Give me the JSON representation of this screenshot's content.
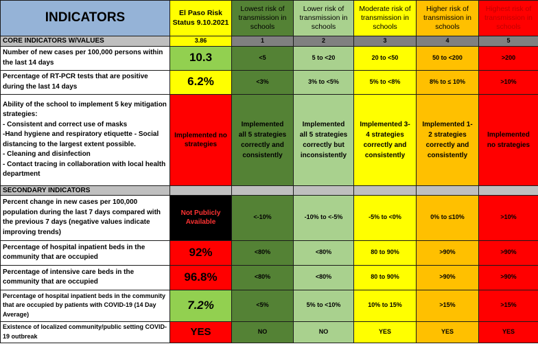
{
  "header": {
    "title": "INDICATORS",
    "status_label": "El Paso Risk Status 9.10.2021",
    "levels": [
      {
        "label": "Lowest risk of transmission in schools",
        "num": "1",
        "color": "#548235"
      },
      {
        "label": "Lower risk of transmission in schools",
        "num": "2",
        "color": "#a9d18e"
      },
      {
        "label": "Moderate risk of transmission in schools",
        "num": "3",
        "color": "#ffff00"
      },
      {
        "label": "Higher  risk of transmission in schools",
        "num": "4",
        "color": "#ffc000"
      },
      {
        "label": "Highest risk of transmission in schools",
        "num": "5",
        "color": "#ff0000"
      }
    ]
  },
  "core": {
    "title": "CORE INDICATORS W/VALUES",
    "score": "3.86",
    "rows": [
      {
        "label": "Number of new cases per 100,000 persons within the last 14 days",
        "value": "10.3",
        "levels": [
          "<5",
          "5 to <20",
          "20 to <50",
          "50 to <200",
          ">200"
        ]
      },
      {
        "label": "Percentage of RT-PCR tests that are positive during the last 14 days",
        "value": "6.2%",
        "levels": [
          "<3%",
          "3% to <5%",
          "5% to <8%",
          "8% to ≤ 10%",
          ">10%"
        ]
      },
      {
        "label_lines": [
          "Ability of the school to implement 5 key mitigation strategies:",
          "- Consistent and correct use of masks",
          "-Hand hygiene and respiratory etiquette        - Social distancing to the largest extent possible.",
          "- Cleaning and disinfection",
          "- Contact tracing in collaboration with local health department"
        ],
        "value": "Implemented no strategies",
        "levels": [
          "Implemented all 5 strategies correctly and consistently",
          "Implemented all 5 strategies correctly but inconsistently",
          "Implemented 3-4 strategies correctly and consistently",
          "Implemented 1-2 strategies correctly and consistently",
          "Implemented no strategies"
        ]
      }
    ]
  },
  "secondary": {
    "title": "SECONDARY INDICATORS",
    "rows": [
      {
        "label": "Percent change in new cases per 100,000 population during the last 7 days compared with the previous 7 days (negative values indicate improving trends)",
        "value": "Not Publicly Available",
        "levels": [
          "<-10%",
          "-10% to <-5%",
          "-5% to <0%",
          "0% to ≤10%",
          ">10%"
        ]
      },
      {
        "label": "Percentage of hospital inpatient beds in the community that are occupied",
        "value": "92%",
        "levels": [
          "<80%",
          "<80%",
          "80 to 90%",
          ">90%",
          ">90%"
        ]
      },
      {
        "label": "Percentage of intensive care beds in the community that are occupied",
        "value": "96.8%",
        "levels": [
          "<80%",
          "<80%",
          "80 to 90%",
          ">90%",
          ">90%"
        ]
      },
      {
        "label": "Percentage of hospital inpatient beds in the community that are occupied by patients with COVID-19 (14 Day Average)",
        "value": "7.2%",
        "levels": [
          "<5%",
          "5% to <10%",
          "10% to 15%",
          ">15%",
          ">15%"
        ]
      },
      {
        "label": "Existence of localized community/public setting COVID-19 outbreak",
        "value": "YES",
        "levels": [
          "NO",
          "NO",
          "YES",
          "YES",
          "YES"
        ]
      }
    ]
  }
}
